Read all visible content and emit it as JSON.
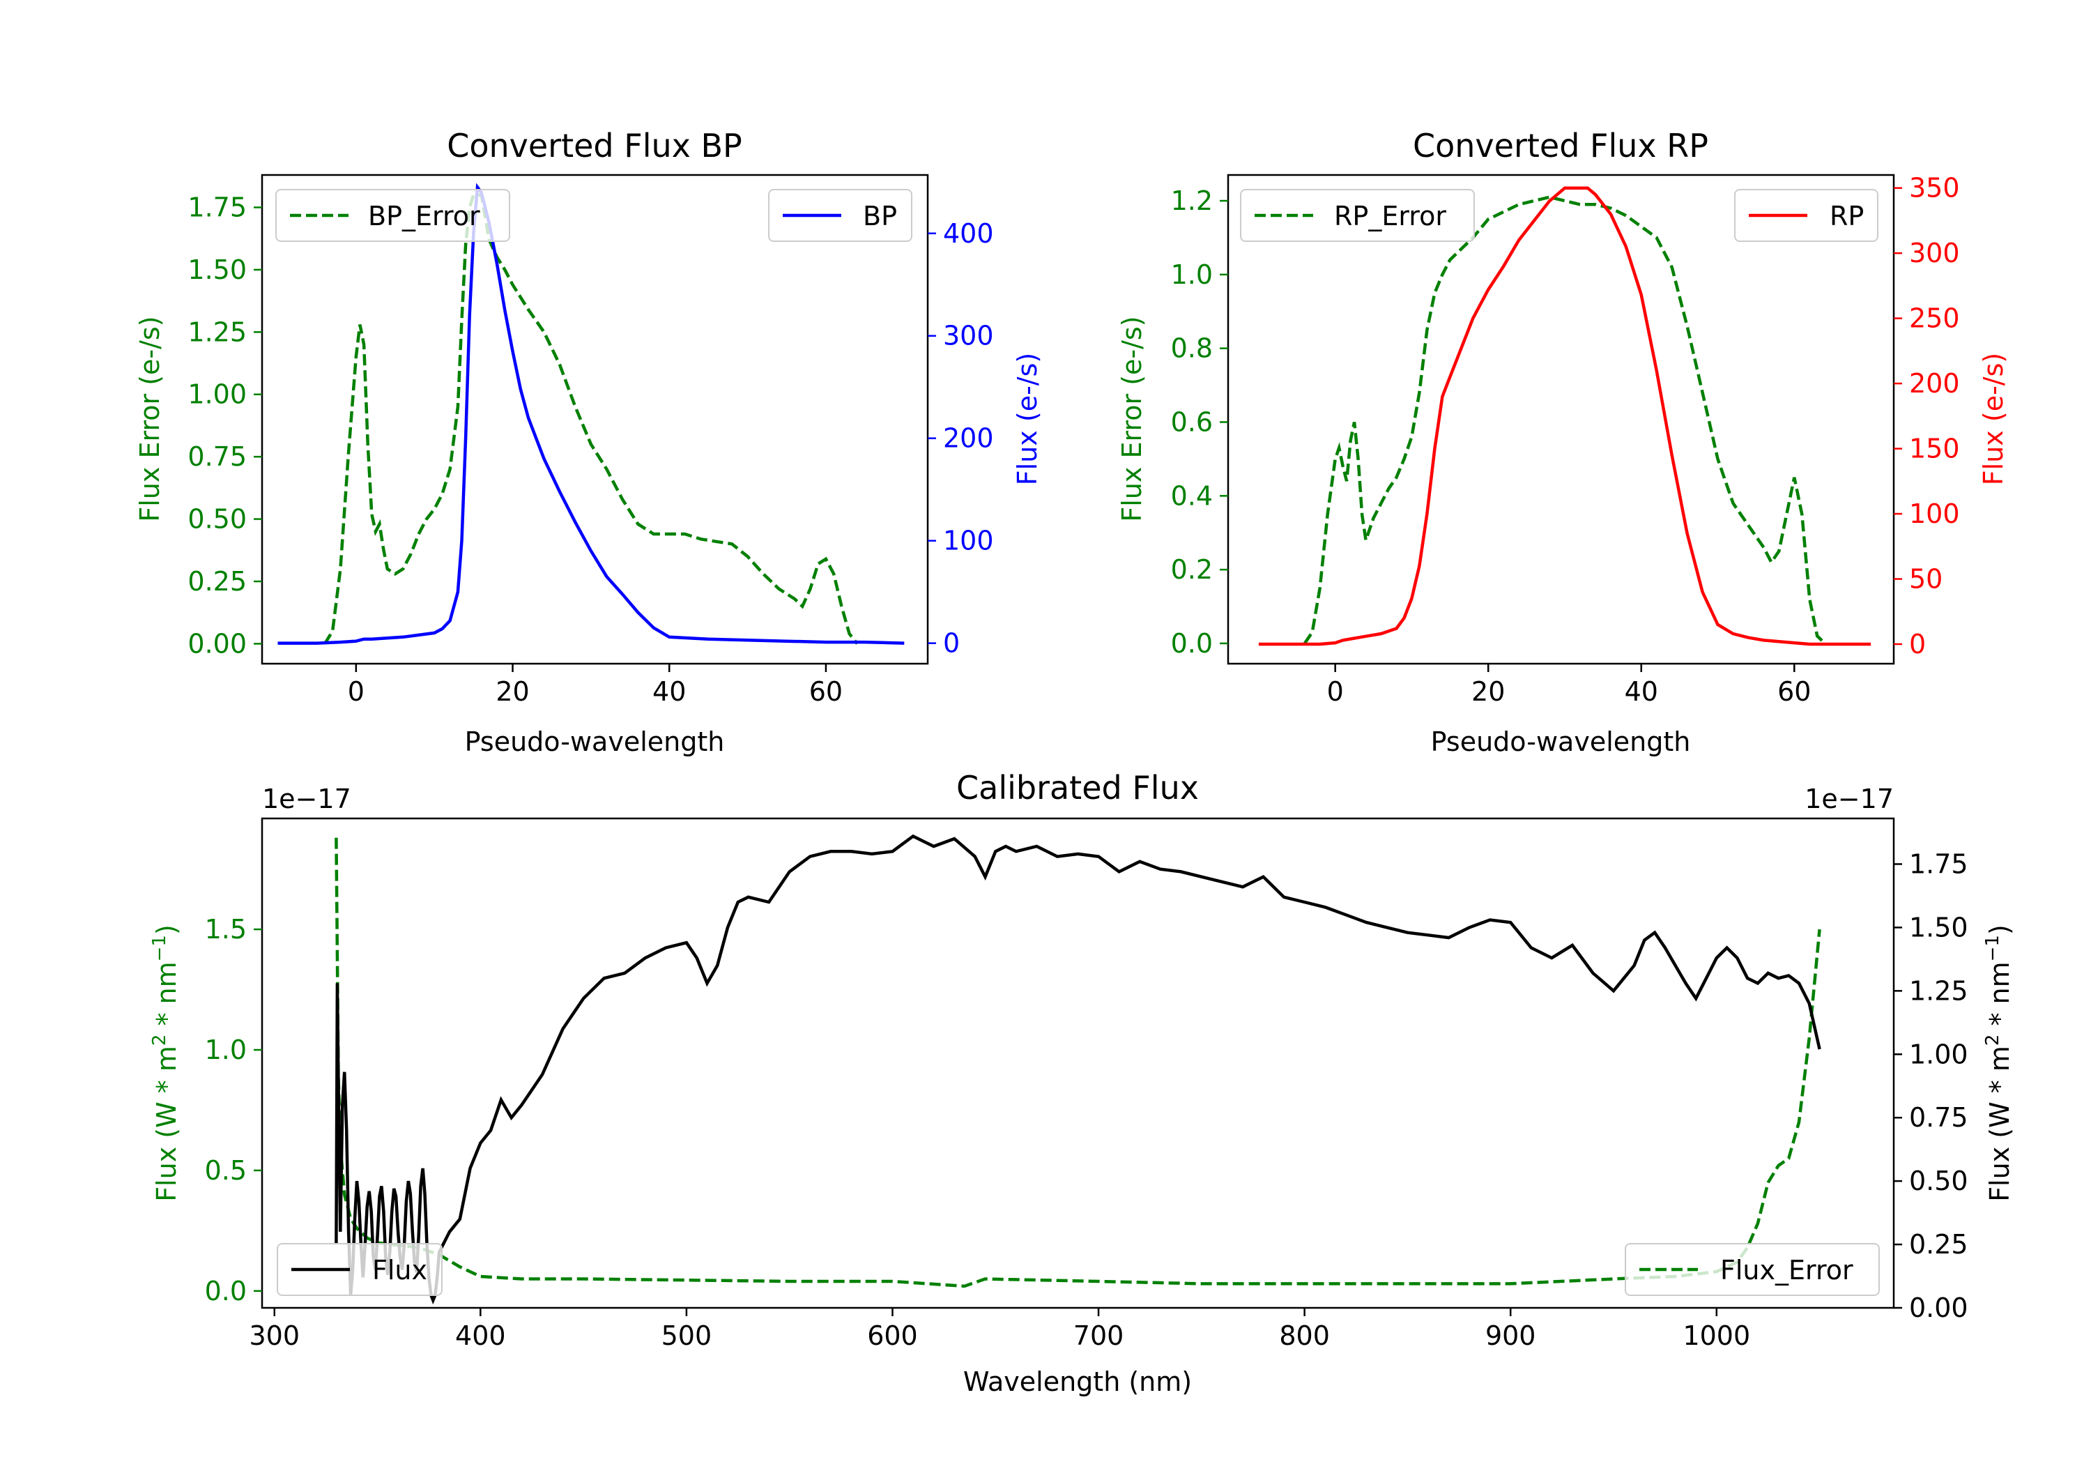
{
  "chart_data": [
    {
      "id": "bp",
      "type": "line",
      "title": "Converted Flux BP",
      "xlabel": "Pseudo-wavelength",
      "ylabel_left": "Flux Error (e-/s)",
      "ylabel_right": "Flux (e-/s)",
      "xlim": [
        -12,
        73
      ],
      "xticks": [
        0,
        20,
        40,
        60
      ],
      "ylim_left": [
        -0.08,
        1.88
      ],
      "yticks_left": [
        "0.00",
        "0.25",
        "0.50",
        "0.75",
        "1.00",
        "1.25",
        "1.50",
        "1.75"
      ],
      "ylim_right": [
        -20,
        457
      ],
      "yticks_right": [
        "0",
        "100",
        "200",
        "300",
        "400"
      ],
      "left_axis_color": "#008000",
      "right_axis_color": "#0000ff",
      "legends": [
        {
          "label": "BP_Error",
          "position": "upper-left",
          "style": "dashed",
          "color": "#008000"
        },
        {
          "label": "BP",
          "position": "upper-right",
          "style": "solid",
          "color": "#0000ff"
        }
      ],
      "series": [
        {
          "name": "BP_Error",
          "axis": "left",
          "color": "#008000",
          "style": "dashed",
          "x": [
            -4,
            -3,
            -2,
            -1,
            0,
            0.5,
            1,
            1.5,
            2,
            2.5,
            3,
            3.5,
            4,
            5,
            6,
            7,
            8,
            9,
            10,
            11,
            12,
            13,
            13.5,
            14,
            14.5,
            15,
            16,
            17,
            18,
            19,
            20,
            22,
            24,
            26,
            28,
            30,
            32,
            34,
            36,
            38,
            40,
            42,
            44,
            46,
            48,
            50,
            52,
            54,
            56,
            57,
            58,
            59,
            60,
            61,
            62,
            63,
            64
          ],
          "y": [
            0.0,
            0.05,
            0.3,
            0.75,
            1.15,
            1.28,
            1.2,
            0.8,
            0.52,
            0.45,
            0.48,
            0.38,
            0.3,
            0.28,
            0.3,
            0.36,
            0.44,
            0.5,
            0.54,
            0.6,
            0.7,
            0.95,
            1.3,
            1.6,
            1.75,
            1.8,
            1.8,
            1.62,
            1.55,
            1.5,
            1.44,
            1.34,
            1.25,
            1.12,
            0.95,
            0.8,
            0.7,
            0.58,
            0.48,
            0.44,
            0.44,
            0.44,
            0.42,
            0.41,
            0.4,
            0.35,
            0.28,
            0.22,
            0.18,
            0.15,
            0.22,
            0.32,
            0.34,
            0.28,
            0.15,
            0.04,
            0.0
          ]
        },
        {
          "name": "BP",
          "axis": "right",
          "color": "#0000ff",
          "style": "solid",
          "x": [
            -10,
            -5,
            -2,
            0,
            1,
            2,
            4,
            6,
            8,
            10,
            11,
            12,
            13,
            13.5,
            14,
            14.5,
            15,
            15.5,
            16,
            17,
            18,
            19,
            20,
            21,
            22,
            23,
            24,
            26,
            28,
            30,
            32,
            34,
            36,
            38,
            40,
            45,
            50,
            55,
            60,
            65,
            70
          ],
          "y": [
            0,
            0,
            1,
            2,
            4,
            4,
            5,
            6,
            8,
            10,
            14,
            22,
            50,
            100,
            200,
            320,
            400,
            445,
            440,
            410,
            370,
            325,
            285,
            248,
            220,
            200,
            180,
            148,
            118,
            90,
            65,
            48,
            30,
            15,
            6,
            4,
            3,
            2,
            1,
            1,
            0
          ]
        }
      ]
    },
    {
      "id": "rp",
      "type": "line",
      "title": "Converted Flux RP",
      "xlabel": "Pseudo-wavelength",
      "ylabel_left": "Flux Error (e-/s)",
      "ylabel_right": "Flux (e-/s)",
      "xlim": [
        -14,
        73
      ],
      "xticks": [
        0,
        20,
        40,
        60
      ],
      "ylim_left": [
        -0.055,
        1.27
      ],
      "yticks_left": [
        "0.0",
        "0.2",
        "0.4",
        "0.6",
        "0.8",
        "1.0",
        "1.2"
      ],
      "ylim_right": [
        -15,
        360
      ],
      "yticks_right": [
        "0",
        "50",
        "100",
        "150",
        "200",
        "250",
        "300",
        "350"
      ],
      "left_axis_color": "#008000",
      "right_axis_color": "#ff0000",
      "legends": [
        {
          "label": "RP_Error",
          "position": "upper-left",
          "style": "dashed",
          "color": "#008000"
        },
        {
          "label": "RP",
          "position": "upper-right",
          "style": "solid",
          "color": "#ff0000"
        }
      ],
      "series": [
        {
          "name": "RP_Error",
          "axis": "left",
          "color": "#008000",
          "style": "dashed",
          "x": [
            -4,
            -3,
            -2,
            -1,
            0,
            0.5,
            1,
            1.5,
            2,
            2.5,
            3,
            3.5,
            4,
            5,
            6,
            7,
            8,
            9,
            10,
            11,
            12,
            13,
            14,
            15,
            16,
            18,
            20,
            22,
            24,
            26,
            28,
            30,
            32,
            34,
            36,
            38,
            40,
            42,
            44,
            46,
            48,
            50,
            52,
            54,
            56,
            57,
            58,
            59,
            60,
            61,
            62,
            63,
            64
          ],
          "y": [
            0.0,
            0.03,
            0.15,
            0.35,
            0.5,
            0.53,
            0.48,
            0.44,
            0.55,
            0.6,
            0.5,
            0.35,
            0.28,
            0.34,
            0.38,
            0.42,
            0.45,
            0.5,
            0.56,
            0.68,
            0.85,
            0.95,
            1.0,
            1.04,
            1.06,
            1.1,
            1.15,
            1.17,
            1.19,
            1.2,
            1.21,
            1.2,
            1.19,
            1.19,
            1.18,
            1.16,
            1.13,
            1.1,
            1.02,
            0.86,
            0.68,
            0.5,
            0.38,
            0.32,
            0.26,
            0.22,
            0.25,
            0.35,
            0.45,
            0.35,
            0.12,
            0.02,
            0.0
          ]
        },
        {
          "name": "RP",
          "axis": "right",
          "color": "#ff0000",
          "style": "solid",
          "x": [
            -10,
            -5,
            -2,
            0,
            1,
            2,
            4,
            6,
            8,
            9,
            10,
            11,
            12,
            13,
            14,
            15,
            16,
            18,
            20,
            22,
            24,
            26,
            28,
            30,
            32,
            33,
            34,
            36,
            38,
            40,
            42,
            44,
            46,
            48,
            50,
            52,
            54,
            56,
            58,
            60,
            62,
            65,
            70
          ],
          "y": [
            0,
            0,
            0,
            1,
            3,
            4,
            6,
            8,
            12,
            20,
            35,
            60,
            100,
            150,
            190,
            205,
            220,
            250,
            272,
            290,
            310,
            325,
            340,
            350,
            350,
            350,
            345,
            330,
            305,
            268,
            210,
            145,
            85,
            40,
            15,
            8,
            5,
            3,
            2,
            1,
            0,
            0,
            0
          ]
        }
      ]
    },
    {
      "id": "cal",
      "type": "line",
      "title": "Calibrated Flux",
      "xlabel": "Wavelength (nm)",
      "ylabel_left": "Flux (W * m$^2$ * nm$^{-1}$)",
      "ylabel_right": "Flux (W * m$^2$ * nm$^{-1}$)",
      "offset_left": "1e−17",
      "offset_right": "1e−17",
      "xlim": [
        294,
        1086
      ],
      "xticks": [
        "300",
        "400",
        "500",
        "600",
        "700",
        "800",
        "900",
        "1000"
      ],
      "ylim_left": [
        -0.07,
        1.96
      ],
      "yticks_left": [
        "0.0",
        "0.5",
        "1.0",
        "1.5"
      ],
      "ylim_right": [
        0.0,
        1.93
      ],
      "yticks_right": [
        "0.00",
        "0.25",
        "0.50",
        "0.75",
        "1.00",
        "1.25",
        "1.50",
        "1.75"
      ],
      "left_axis_color": "#008000",
      "right_axis_color": "#000000",
      "legends": [
        {
          "label": "Flux",
          "position": "lower-left",
          "style": "solid",
          "color": "#000000"
        },
        {
          "label": "Flux_Error",
          "position": "lower-right",
          "style": "dashed",
          "color": "#008000"
        }
      ],
      "series": [
        {
          "name": "Flux_Error",
          "axis": "left",
          "color": "#008000",
          "style": "dashed",
          "x": [
            330,
            330.5,
            331,
            332,
            334,
            337,
            340,
            345,
            350,
            360,
            370,
            380,
            390,
            400,
            420,
            450,
            500,
            550,
            600,
            635,
            645,
            700,
            750,
            800,
            850,
            900,
            950,
            980,
            1000,
            1010,
            1015,
            1020,
            1025,
            1030,
            1035,
            1040,
            1045,
            1050
          ],
          "y": [
            1.88,
            1.4,
            0.9,
            0.6,
            0.4,
            0.3,
            0.26,
            0.22,
            0.2,
            0.19,
            0.18,
            0.15,
            0.1,
            0.06,
            0.05,
            0.05,
            0.045,
            0.04,
            0.04,
            0.02,
            0.05,
            0.04,
            0.03,
            0.03,
            0.03,
            0.03,
            0.05,
            0.06,
            0.08,
            0.12,
            0.18,
            0.28,
            0.45,
            0.52,
            0.55,
            0.7,
            1.05,
            1.5
          ]
        },
        {
          "name": "Flux",
          "axis": "right",
          "color": "#000000",
          "style": "solid",
          "x": [
            330,
            330.5,
            331,
            332,
            333,
            334,
            335,
            336,
            337,
            338,
            339,
            340,
            341,
            342,
            343,
            344,
            345,
            346,
            347,
            348,
            349,
            350,
            351,
            352,
            353,
            354,
            355,
            356,
            357,
            358,
            359,
            360,
            361,
            362,
            363,
            364,
            365,
            366,
            367,
            368,
            369,
            370,
            371,
            372,
            373,
            374,
            375,
            376,
            377,
            378,
            379,
            380,
            385,
            390,
            395,
            400,
            405,
            410,
            415,
            420,
            430,
            440,
            450,
            460,
            470,
            480,
            490,
            500,
            505,
            510,
            515,
            520,
            525,
            530,
            540,
            550,
            560,
            570,
            580,
            590,
            600,
            610,
            620,
            630,
            640,
            645,
            650,
            655,
            660,
            670,
            680,
            690,
            700,
            710,
            720,
            730,
            740,
            750,
            760,
            770,
            780,
            790,
            800,
            810,
            820,
            830,
            840,
            850,
            860,
            870,
            880,
            890,
            900,
            910,
            920,
            930,
            940,
            950,
            955,
            960,
            965,
            970,
            975,
            980,
            985,
            990,
            995,
            1000,
            1005,
            1010,
            1015,
            1020,
            1025,
            1030,
            1035,
            1040,
            1045,
            1050
          ],
          "y": [
            0.25,
            1.28,
            0.9,
            0.3,
            0.8,
            0.93,
            0.7,
            0.3,
            0.05,
            0.15,
            0.35,
            0.5,
            0.42,
            0.25,
            0.12,
            0.25,
            0.4,
            0.46,
            0.38,
            0.2,
            0.15,
            0.28,
            0.44,
            0.48,
            0.38,
            0.2,
            0.13,
            0.22,
            0.38,
            0.47,
            0.44,
            0.3,
            0.2,
            0.15,
            0.25,
            0.42,
            0.5,
            0.45,
            0.3,
            0.18,
            0.14,
            0.28,
            0.48,
            0.55,
            0.45,
            0.25,
            0.12,
            0.05,
            0.03,
            0.05,
            0.12,
            0.22,
            0.3,
            0.35,
            0.55,
            0.65,
            0.7,
            0.82,
            0.75,
            0.8,
            0.92,
            1.1,
            1.22,
            1.3,
            1.32,
            1.38,
            1.42,
            1.44,
            1.38,
            1.28,
            1.35,
            1.5,
            1.6,
            1.62,
            1.6,
            1.72,
            1.78,
            1.8,
            1.8,
            1.79,
            1.8,
            1.86,
            1.82,
            1.85,
            1.78,
            1.7,
            1.8,
            1.82,
            1.8,
            1.82,
            1.78,
            1.79,
            1.78,
            1.72,
            1.76,
            1.73,
            1.72,
            1.7,
            1.68,
            1.66,
            1.7,
            1.62,
            1.6,
            1.58,
            1.55,
            1.52,
            1.5,
            1.48,
            1.47,
            1.46,
            1.5,
            1.53,
            1.52,
            1.42,
            1.38,
            1.43,
            1.32,
            1.25,
            1.3,
            1.35,
            1.45,
            1.48,
            1.42,
            1.35,
            1.28,
            1.22,
            1.3,
            1.38,
            1.42,
            1.38,
            1.3,
            1.28,
            1.32,
            1.3,
            1.31,
            1.28,
            1.2,
            1.02
          ]
        }
      ]
    }
  ]
}
